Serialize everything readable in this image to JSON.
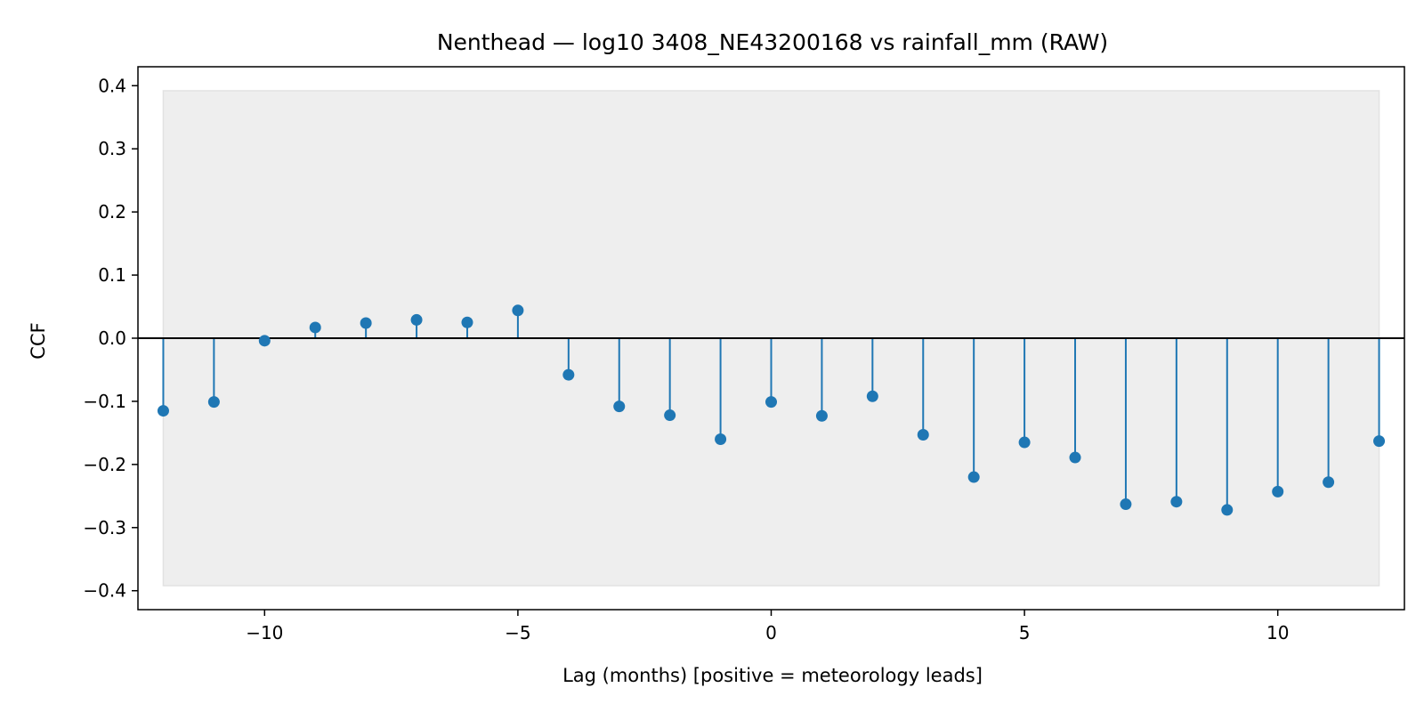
{
  "chart_data": {
    "type": "stem",
    "title": "Nenthead — log10 3408_NE43200168 vs rainfall_mm (RAW)",
    "xlabel": "Lag (months)  [positive = meteorology leads]",
    "ylabel": "CCF",
    "xlim": [
      -12.5,
      12.5
    ],
    "ylim": [
      -0.43,
      0.43
    ],
    "xticks": [
      -10,
      -5,
      0,
      5,
      10
    ],
    "xtick_labels": [
      "−10",
      "−5",
      "0",
      "5",
      "10"
    ],
    "yticks": [
      0.4,
      0.3,
      0.2,
      0.1,
      0.0,
      -0.1,
      -0.2,
      -0.3,
      -0.4
    ],
    "ytick_labels": [
      "0.4",
      "0.3",
      "0.2",
      "0.1",
      "0.0",
      "−0.1",
      "−0.2",
      "−0.3",
      "−0.4"
    ],
    "confidence_band": [
      -0.392,
      0.392
    ],
    "grid": false,
    "x": [
      -12,
      -11,
      -10,
      -9,
      -8,
      -7,
      -6,
      -5,
      -4,
      -3,
      -2,
      -1,
      0,
      1,
      2,
      3,
      4,
      5,
      6,
      7,
      8,
      9,
      10,
      11,
      12
    ],
    "values": [
      -0.115,
      -0.101,
      -0.004,
      0.017,
      0.024,
      0.029,
      0.025,
      0.044,
      -0.058,
      -0.108,
      -0.122,
      -0.16,
      -0.101,
      -0.123,
      -0.092,
      -0.153,
      -0.22,
      -0.165,
      -0.189,
      -0.263,
      -0.259,
      -0.272,
      -0.243,
      -0.228,
      -0.163
    ],
    "colors": {
      "stem": "#1f77b4",
      "band": "#eeeeee",
      "band_edge": "#e2e2e2",
      "zero_line": "#000000"
    }
  }
}
